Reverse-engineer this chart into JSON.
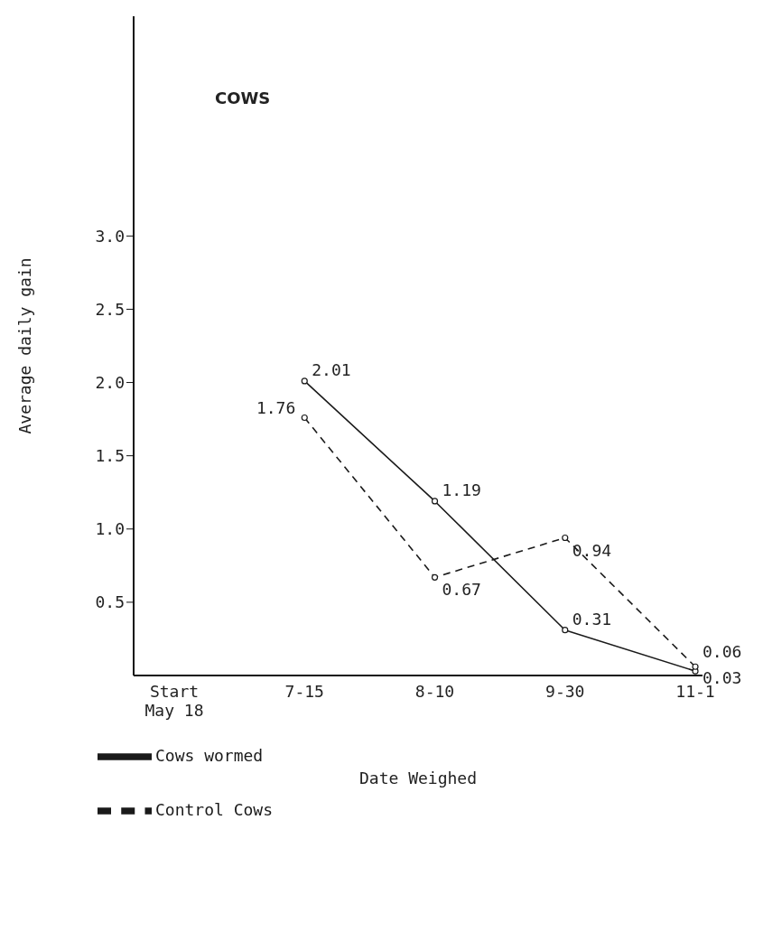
{
  "chart_data": {
    "type": "line",
    "title": "COWS",
    "xlabel": "Date Weighed",
    "ylabel": "Average daily gain",
    "categories": [
      "Start\nMay 18",
      "7-15",
      "8-10",
      "9-30",
      "11-1"
    ],
    "series": [
      {
        "name": "Cows wormed",
        "color": "#1a1a1a",
        "line_style": "solid",
        "values": [
          null,
          2.01,
          1.19,
          0.31,
          0.03
        ]
      },
      {
        "name": "Control Cows",
        "color": "#1a1a1a",
        "line_style": "dashed",
        "values": [
          null,
          1.76,
          0.67,
          0.94,
          0.06
        ]
      }
    ],
    "ylim": [
      0,
      4.5
    ],
    "yticks": [
      0.5,
      {
        "value": 1,
        "label": "1.0"
      },
      1.5,
      {
        "value": 2,
        "label": "2.0"
      },
      2.5,
      {
        "value": 3,
        "label": "3.0"
      }
    ],
    "data_labels": true,
    "marker": "circle",
    "legend": "bottom",
    "grid": false
  }
}
